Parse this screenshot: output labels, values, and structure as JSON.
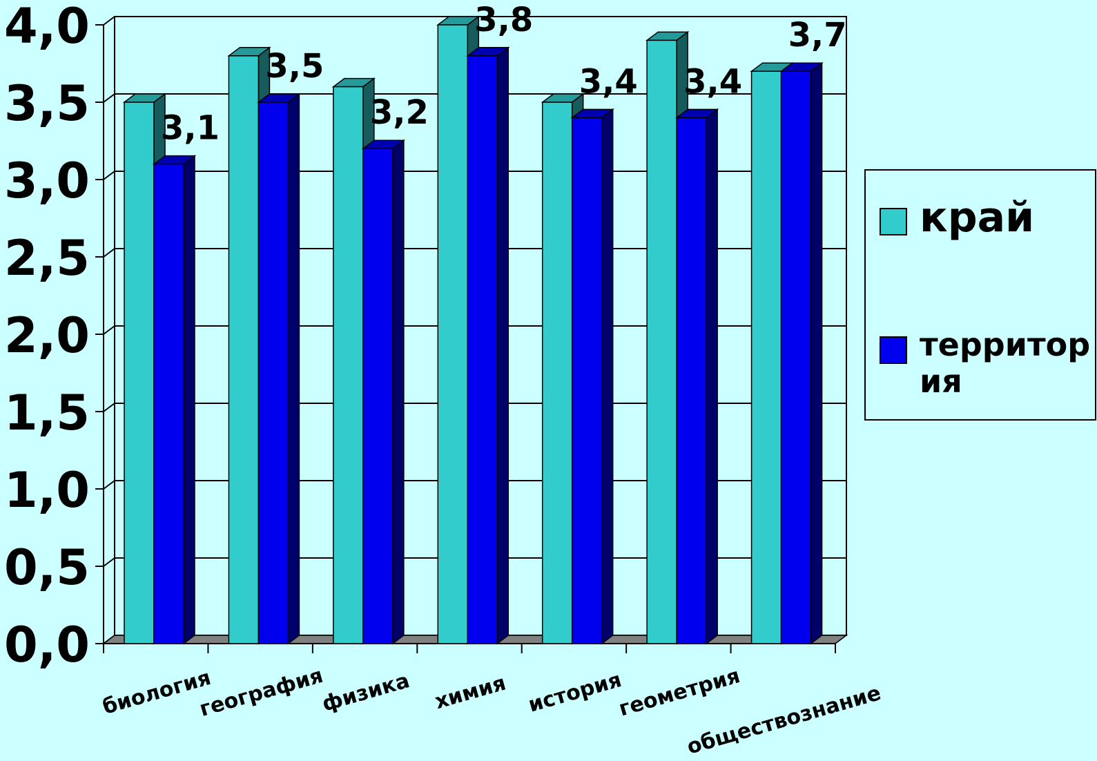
{
  "chart_data": {
    "type": "bar",
    "categories": [
      "биология",
      "география",
      "физика",
      "химия",
      "история",
      "геометрия",
      "обществознание"
    ],
    "series": [
      {
        "name": "край",
        "values": [
          3.5,
          3.8,
          3.6,
          4.0,
          3.5,
          3.9,
          3.7
        ],
        "color": "#33cccc"
      },
      {
        "name": "территория",
        "values": [
          3.1,
          3.5,
          3.2,
          3.8,
          3.4,
          3.4,
          3.7
        ],
        "color": "#0000ee"
      }
    ],
    "data_labels": [
      "3,1",
      "3,5",
      "3,2",
      "3,8",
      "3,4",
      "3,4",
      "3,7"
    ],
    "y_tick_labels": [
      "0,0",
      "0,5",
      "1,0",
      "1,5",
      "2,0",
      "2,5",
      "3,0",
      "3,5",
      "4,0"
    ],
    "ylim": [
      0,
      4
    ],
    "grid": true,
    "legend_position": "right",
    "three_d": true,
    "title": "",
    "xlabel": "",
    "ylabel": ""
  },
  "legend": {
    "items": [
      {
        "label": "край",
        "color": "#33cccc"
      },
      {
        "label": "территор ия",
        "color": "#0000ee"
      }
    ]
  },
  "colors": {
    "background": "#ccffff",
    "floor": "#808080",
    "grid": "#000000"
  }
}
